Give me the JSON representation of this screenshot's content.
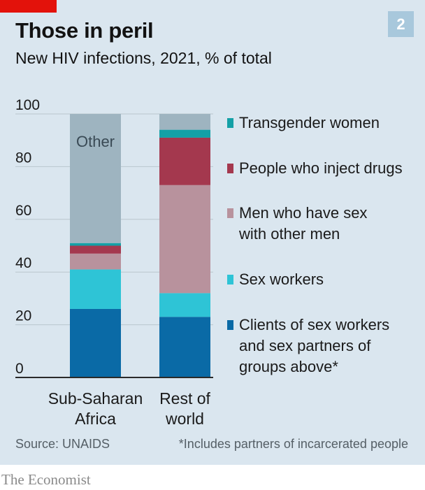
{
  "header": {
    "title": "Those in peril",
    "subtitle": "New HIV infections, 2021, % of total",
    "badge": "2"
  },
  "colors": {
    "panel": "#dae6ef",
    "brand_red": "#e3120b",
    "badge_bg": "#a8c8dc",
    "axis": "#2a2a2a",
    "grid": "#b9c6ce"
  },
  "chart_data": {
    "type": "bar",
    "stacked": true,
    "categories": [
      "Sub-Saharan\nAfrica",
      "Rest of\nworld"
    ],
    "ylim": [
      0,
      100
    ],
    "yticks": [
      0,
      20,
      40,
      60,
      80,
      100
    ],
    "grid": true,
    "legend_position": "right",
    "series": [
      {
        "name": "Clients of sex workers\nand sex partners of\ngroups above*",
        "color": "#0a6aa6",
        "values": [
          26,
          23
        ]
      },
      {
        "name": "Sex workers",
        "color": "#2ec4d6",
        "values": [
          15,
          9
        ]
      },
      {
        "name": "Men who have sex\nwith other men",
        "color": "#b8929d",
        "values": [
          6,
          41
        ]
      },
      {
        "name": "People who inject drugs",
        "color": "#a4384e",
        "values": [
          3,
          18
        ]
      },
      {
        "name": "Transgender women",
        "color": "#14a0a6",
        "values": [
          1,
          3
        ]
      },
      {
        "name": "",
        "color": "#9eb4c0",
        "values": [
          49,
          6
        ]
      }
    ],
    "annotations": [
      {
        "text": "Other",
        "category_index": 0,
        "series_index": 5
      }
    ]
  },
  "legend_order": [
    4,
    3,
    2,
    1,
    0
  ],
  "footer": {
    "source": "Source: UNAIDS",
    "footnote": "*Includes partners of incarcerated people",
    "brand": "The Economist"
  }
}
